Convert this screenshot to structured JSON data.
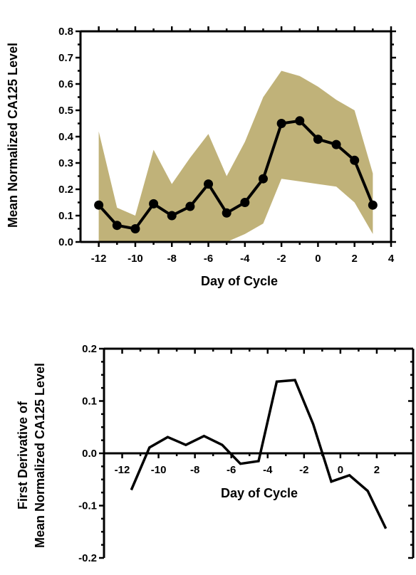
{
  "colors": {
    "band": "#c0b279",
    "line": "#000000",
    "background": "#ffffff"
  },
  "chart_data": [
    {
      "type": "line",
      "xlabel": "Day of Cycle",
      "ylabel": "Mean Normalized CA125 Level",
      "xlim": [
        -13,
        4
      ],
      "ylim": [
        0,
        0.8
      ],
      "x_ticks": [
        -12,
        -10,
        -8,
        -6,
        -4,
        -2,
        0,
        2,
        4
      ],
      "y_ticks": [
        0.0,
        0.1,
        0.2,
        0.3,
        0.4,
        0.5,
        0.6,
        0.7,
        0.8
      ],
      "y_tick_labels": [
        "0.0",
        "0.1",
        "0.2",
        "0.3",
        "0.4",
        "0.5",
        "0.6",
        "0.7",
        "0.8"
      ],
      "grid": false,
      "series": [
        {
          "x": [
            -12,
            -11,
            -10,
            -9,
            -8,
            -7,
            -6,
            -5,
            -4,
            -3,
            -2,
            -1,
            0,
            1,
            2,
            3
          ],
          "values": [
            0.14,
            0.063,
            0.05,
            0.145,
            0.1,
            0.135,
            0.22,
            0.11,
            0.15,
            0.24,
            0.45,
            0.46,
            0.39,
            0.37,
            0.31,
            0.14
          ],
          "upper": [
            0.42,
            0.13,
            0.1,
            0.35,
            0.22,
            0.32,
            0.41,
            0.25,
            0.38,
            0.55,
            0.65,
            0.63,
            0.59,
            0.54,
            0.5,
            0.26
          ],
          "lower": [
            0.0,
            0.0,
            0.0,
            0.0,
            0.0,
            0.0,
            0.0,
            0.0,
            0.03,
            0.07,
            0.24,
            0.23,
            0.22,
            0.21,
            0.15,
            0.03
          ]
        }
      ]
    },
    {
      "type": "line",
      "xlabel": "Day of Cycle",
      "ylabel_lines": [
        "First Derivative of",
        "Mean Normalized CA125 Level"
      ],
      "xlim": [
        -13,
        4
      ],
      "ylim": [
        -0.2,
        0.2
      ],
      "x_ticks": [
        -12,
        -10,
        -8,
        -6,
        -4,
        -2,
        0,
        2
      ],
      "y_ticks": [
        -0.2,
        -0.1,
        0.0,
        0.1,
        0.2
      ],
      "y_tick_labels": [
        "-0.2",
        "-0.1",
        "0.0",
        "0.1",
        "0.2"
      ],
      "grid": false,
      "series": [
        {
          "x": [
            -11.5,
            -10.5,
            -9.5,
            -8.5,
            -7.5,
            -6.5,
            -5.5,
            -4.5,
            -3.5,
            -2.5,
            -1.5,
            -0.5,
            0.5,
            1.5,
            2.5
          ],
          "values": [
            -0.07,
            0.011,
            0.031,
            0.016,
            0.033,
            0.016,
            -0.02,
            -0.015,
            0.137,
            0.14,
            0.056,
            -0.054,
            -0.042,
            -0.072,
            -0.144
          ]
        }
      ]
    }
  ]
}
